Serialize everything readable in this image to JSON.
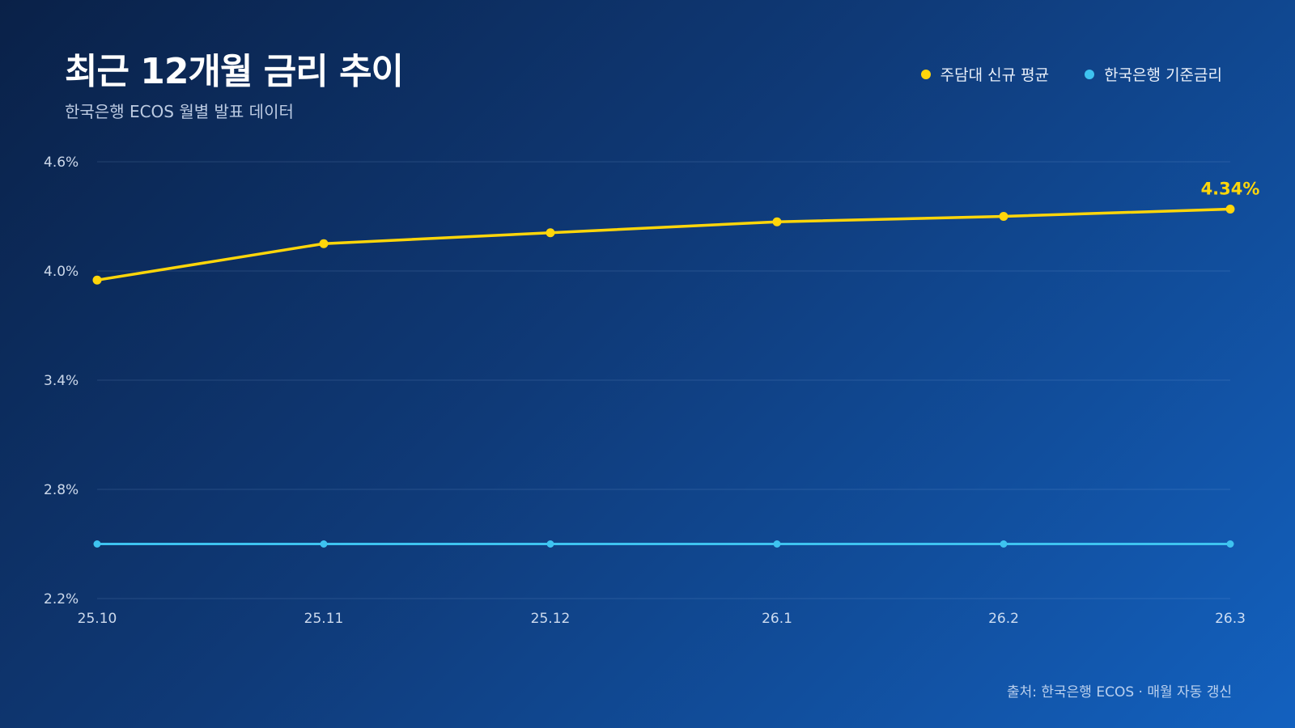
{
  "header": {
    "title": "최근 12개월 금리 추이",
    "subtitle": "한국은행 ECOS 월별 발표 데이터"
  },
  "footer": {
    "source": "출처: 한국은행 ECOS · 매월 자동 갱신"
  },
  "chart_data": {
    "type": "line",
    "title": "최근 12개월 금리 추이",
    "subtitle": "한국은행 ECOS 월별 발표 데이터",
    "xlabel": "",
    "ylabel": "",
    "categories": [
      "25.10",
      "25.11",
      "25.12",
      "26.1",
      "26.2",
      "26.3"
    ],
    "ylim": [
      2.2,
      4.6
    ],
    "yticks": [
      2.2,
      2.8,
      3.4,
      4.0,
      4.6
    ],
    "ytick_labels": [
      "2.2%",
      "2.8%",
      "3.4%",
      "4.0%",
      "4.6%"
    ],
    "grid": true,
    "legend_position": "top-right",
    "series": [
      {
        "name": "주담대 신규 평균",
        "color": "#ffd60a",
        "values": [
          3.95,
          4.15,
          4.21,
          4.27,
          4.3,
          4.34
        ],
        "end_label": "4.34%"
      },
      {
        "name": "한국은행 기준금리",
        "color": "#3ec3f0",
        "values": [
          2.5,
          2.5,
          2.5,
          2.5,
          2.5,
          2.5
        ]
      }
    ]
  }
}
